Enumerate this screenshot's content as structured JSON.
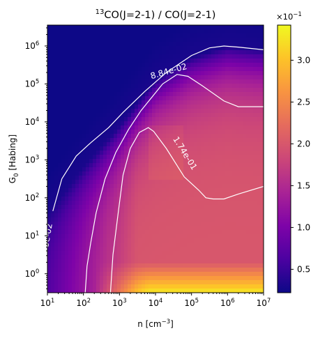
{
  "chart_data": {
    "type": "heatmap",
    "title": {
      "superscript": "13",
      "text": "CO(J=2-1) / CO(J=2-1)"
    },
    "xlabel": {
      "base": "n [cm",
      "superscript": "−3",
      "close": "]"
    },
    "ylabel": {
      "base": "G",
      "subscript": "0",
      "rest": " [Habing]"
    },
    "x_scale": "log",
    "y_scale": "log",
    "x_log10_range": [
      1,
      7
    ],
    "y_log10_range": [
      -0.5,
      6.55
    ],
    "x_ticks": [
      {
        "exp": 1,
        "base": "10",
        "sup": "1"
      },
      {
        "exp": 2,
        "base": "10",
        "sup": "2"
      },
      {
        "exp": 3,
        "base": "10",
        "sup": "3"
      },
      {
        "exp": 4,
        "base": "10",
        "sup": "4"
      },
      {
        "exp": 5,
        "base": "10",
        "sup": "5"
      },
      {
        "exp": 6,
        "base": "10",
        "sup": "6"
      },
      {
        "exp": 7,
        "base": "10",
        "sup": "7"
      }
    ],
    "y_ticks": [
      {
        "exp": 0,
        "base": "10",
        "sup": "0"
      },
      {
        "exp": 1,
        "base": "10",
        "sup": "1"
      },
      {
        "exp": 2,
        "base": "10",
        "sup": "2"
      },
      {
        "exp": 3,
        "base": "10",
        "sup": "3"
      },
      {
        "exp": 4,
        "base": "10",
        "sup": "4"
      },
      {
        "exp": 5,
        "base": "10",
        "sup": "5"
      },
      {
        "exp": 6,
        "base": "10",
        "sup": "6"
      }
    ],
    "colormap": "plasma",
    "colorbar": {
      "range": [
        0.22,
        3.42
      ],
      "ticks": [
        "0.5",
        "1.0",
        "1.5",
        "2.0",
        "2.5",
        "3.0"
      ],
      "tick_values": [
        0.5,
        1.0,
        1.5,
        2.0,
        2.5,
        3.0
      ],
      "multiplier": {
        "base": "×10",
        "sup": "−1"
      }
    },
    "contours": [
      {
        "label": "3.0e-02",
        "label_shown": "3e-02",
        "color": "#ffffff",
        "points": [
          [
            1.15,
            1.65
          ],
          [
            1.4,
            2.5
          ],
          [
            1.8,
            3.1
          ],
          [
            2.2,
            3.45
          ],
          [
            2.7,
            3.85
          ],
          [
            3.1,
            4.25
          ],
          [
            3.7,
            4.8
          ],
          [
            4.3,
            5.3
          ],
          [
            5.0,
            5.75
          ],
          [
            5.5,
            5.95
          ],
          [
            5.9,
            6.0
          ],
          [
            6.3,
            5.97
          ],
          [
            7.0,
            5.9
          ]
        ]
      },
      {
        "label": "8.84e-02",
        "label_shown": "8.84e-02",
        "color": "#ffffff",
        "points": [
          [
            2.05,
            -0.5
          ],
          [
            2.1,
            0.2
          ],
          [
            2.2,
            0.8
          ],
          [
            2.35,
            1.6
          ],
          [
            2.6,
            2.5
          ],
          [
            2.9,
            3.2
          ],
          [
            3.25,
            3.8
          ],
          [
            3.6,
            4.3
          ],
          [
            4.2,
            5.0
          ],
          [
            4.6,
            5.25
          ],
          [
            4.9,
            5.2
          ],
          [
            5.3,
            4.95
          ],
          [
            5.9,
            4.55
          ],
          [
            6.3,
            4.4
          ],
          [
            7.0,
            4.4
          ]
        ]
      },
      {
        "label": "1.74e-01",
        "label_shown": "1.74e-01",
        "color": "#ffffff",
        "points": [
          [
            2.75,
            -0.5
          ],
          [
            2.82,
            0.5
          ],
          [
            2.95,
            1.5
          ],
          [
            3.1,
            2.6
          ],
          [
            3.3,
            3.3
          ],
          [
            3.55,
            3.72
          ],
          [
            3.8,
            3.85
          ],
          [
            3.95,
            3.75
          ],
          [
            4.3,
            3.3
          ],
          [
            4.8,
            2.55
          ],
          [
            5.2,
            2.2
          ],
          [
            5.4,
            2.0
          ],
          [
            5.6,
            1.97
          ],
          [
            5.9,
            1.97
          ],
          [
            6.3,
            2.1
          ],
          [
            7.0,
            2.3
          ]
        ]
      }
    ],
    "grid": false
  }
}
